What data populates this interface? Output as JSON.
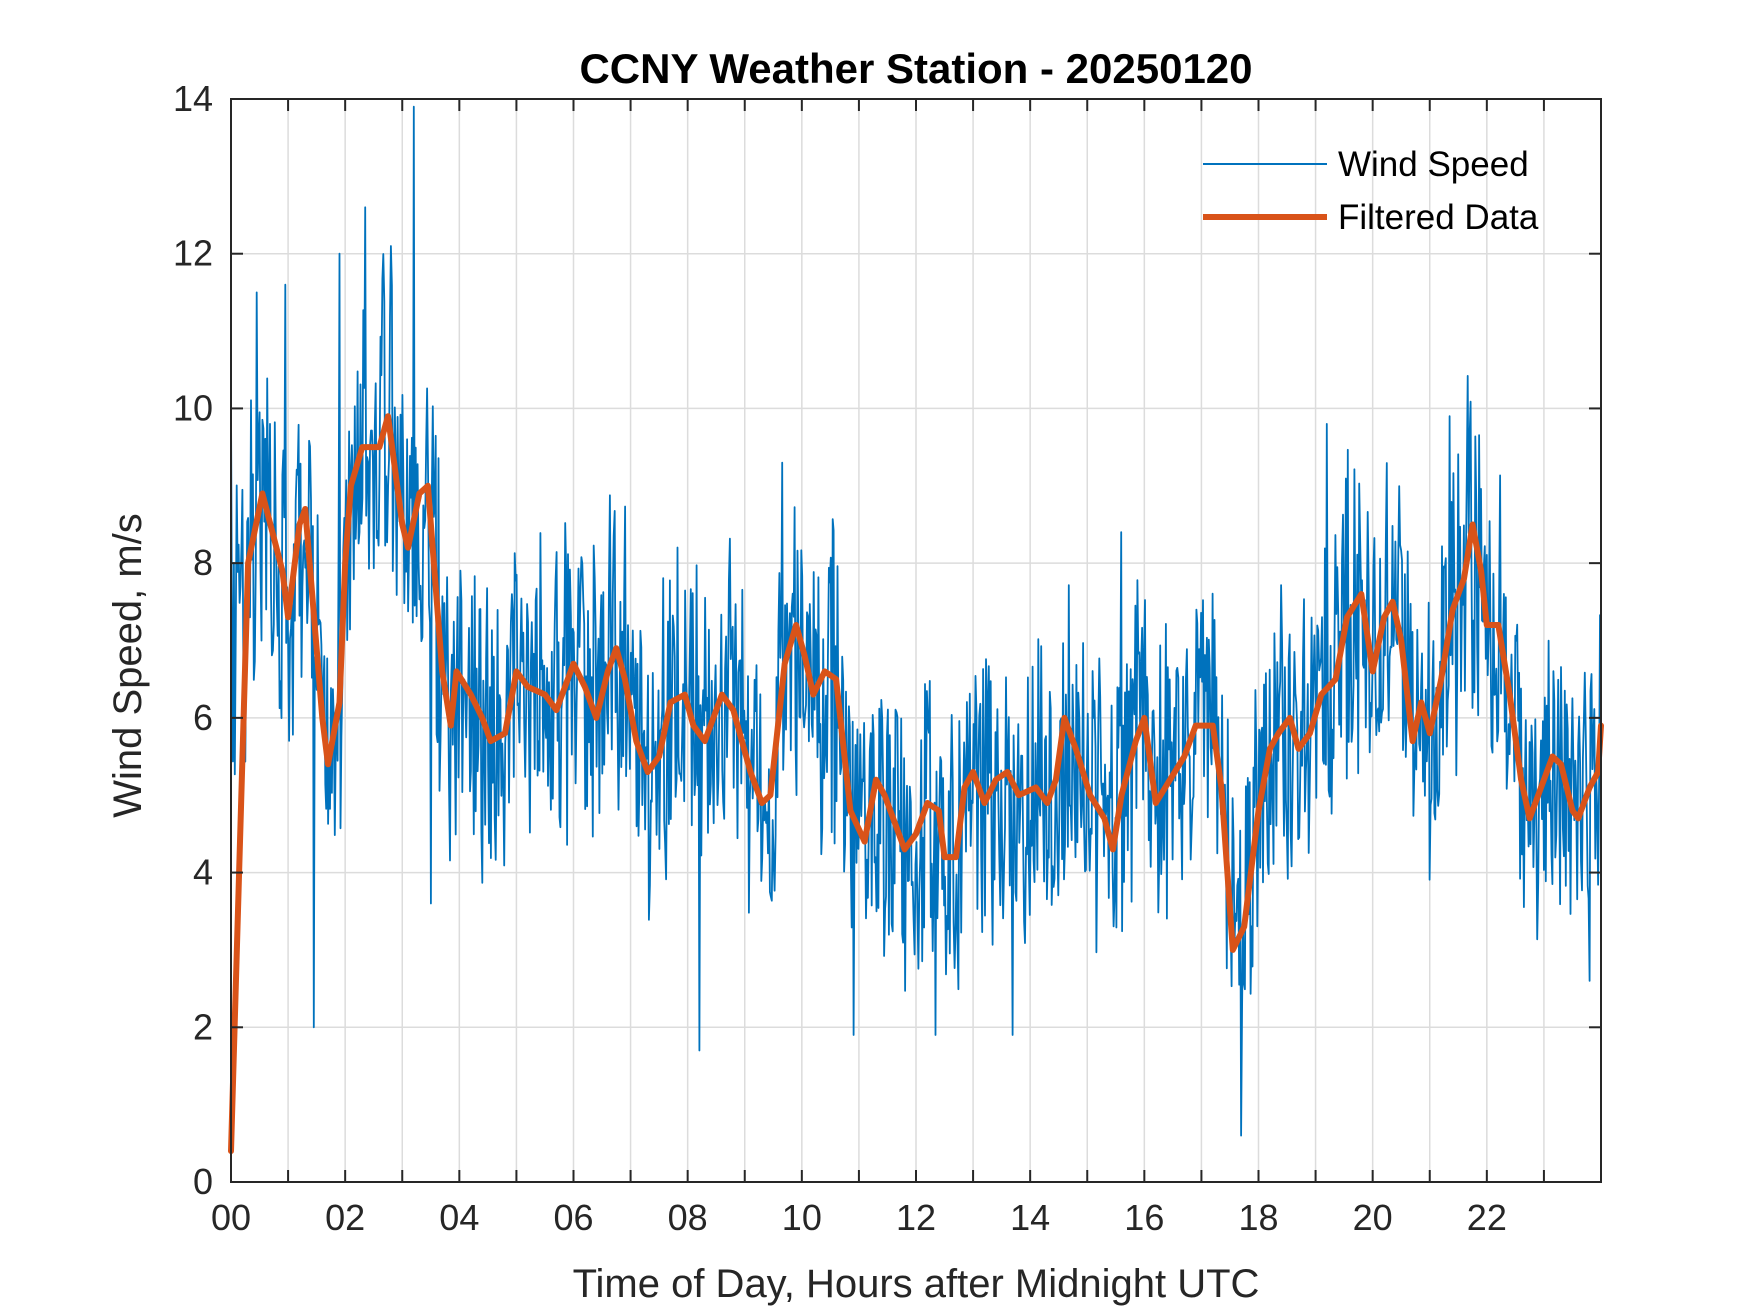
{
  "chart_data": {
    "type": "line",
    "title": "CCNY Weather Station - 20250120",
    "xlabel": "Time of Day, Hours after Midnight UTC",
    "ylabel": "Wind Speed, m/s",
    "xlim": [
      0,
      24
    ],
    "ylim": [
      0,
      14
    ],
    "xticks": [
      0,
      2,
      4,
      6,
      8,
      10,
      12,
      14,
      16,
      18,
      20,
      22
    ],
    "xtick_labels": [
      "00",
      "02",
      "04",
      "06",
      "08",
      "10",
      "12",
      "14",
      "16",
      "18",
      "20",
      "22"
    ],
    "xminor_ticks": [
      1,
      3,
      5,
      7,
      9,
      11,
      13,
      15,
      17,
      19,
      21,
      23
    ],
    "yticks": [
      0,
      2,
      4,
      6,
      8,
      10,
      12,
      14
    ],
    "ytick_labels": [
      "0",
      "2",
      "4",
      "6",
      "8",
      "10",
      "12",
      "14"
    ],
    "grid": true,
    "legend": {
      "location": "top-right",
      "entries": [
        "Wind Speed",
        "Filtered Data"
      ]
    },
    "series": [
      {
        "name": "Wind Speed",
        "color": "#0072BD",
        "style": "thin-line",
        "description": "Raw 1-minute-scale wind speed, highly noisy; peak ~13.9 m/s near 03:10, minimum ~0.6 m/s near 17:40",
        "notable_points": [
          {
            "x": 0.0,
            "y": 10.0
          },
          {
            "x": 0.45,
            "y": 11.5
          },
          {
            "x": 0.95,
            "y": 11.6
          },
          {
            "x": 1.45,
            "y": 2.0
          },
          {
            "x": 1.9,
            "y": 12.0
          },
          {
            "x": 2.35,
            "y": 12.6
          },
          {
            "x": 2.8,
            "y": 12.1
          },
          {
            "x": 3.2,
            "y": 13.9
          },
          {
            "x": 3.5,
            "y": 3.6
          },
          {
            "x": 8.2,
            "y": 1.7
          },
          {
            "x": 9.65,
            "y": 9.3
          },
          {
            "x": 10.9,
            "y": 1.9
          },
          {
            "x": 12.35,
            "y": 1.9
          },
          {
            "x": 13.7,
            "y": 1.9
          },
          {
            "x": 15.6,
            "y": 8.4
          },
          {
            "x": 17.7,
            "y": 0.6
          },
          {
            "x": 19.2,
            "y": 9.8
          },
          {
            "x": 21.35,
            "y": 9.9
          },
          {
            "x": 23.8,
            "y": 2.6
          }
        ]
      },
      {
        "name": "Filtered Data",
        "color": "#D95319",
        "style": "thick-line",
        "x": [
          0.0,
          0.3,
          0.55,
          0.9,
          1.0,
          1.2,
          1.3,
          1.6,
          1.7,
          1.9,
          2.0,
          2.1,
          2.3,
          2.6,
          2.75,
          3.0,
          3.1,
          3.3,
          3.45,
          3.7,
          3.85,
          3.95,
          4.2,
          4.4,
          4.55,
          4.8,
          5.0,
          5.2,
          5.5,
          5.7,
          6.0,
          6.2,
          6.4,
          6.6,
          6.75,
          6.9,
          7.1,
          7.3,
          7.5,
          7.7,
          7.95,
          8.1,
          8.3,
          8.6,
          8.8,
          9.1,
          9.3,
          9.45,
          9.7,
          9.9,
          10.05,
          10.2,
          10.4,
          10.6,
          10.85,
          11.1,
          11.3,
          11.45,
          11.6,
          11.8,
          12.0,
          12.2,
          12.4,
          12.5,
          12.7,
          12.85,
          13.0,
          13.2,
          13.4,
          13.6,
          13.8,
          14.1,
          14.3,
          14.45,
          14.6,
          14.8,
          15.05,
          15.3,
          15.45,
          15.6,
          15.85,
          16.0,
          16.2,
          16.45,
          16.7,
          16.9,
          17.2,
          17.35,
          17.55,
          17.75,
          18.0,
          18.2,
          18.35,
          18.55,
          18.7,
          18.9,
          19.1,
          19.35,
          19.55,
          19.8,
          20.0,
          20.2,
          20.35,
          20.5,
          20.7,
          20.85,
          21.0,
          21.2,
          21.4,
          21.6,
          21.75,
          21.9,
          22.0,
          22.2,
          22.4,
          22.6,
          22.75,
          22.9,
          23.15,
          23.3,
          23.5,
          23.6,
          23.8,
          23.95,
          24.0
        ],
        "y": [
          0.4,
          8.0,
          8.9,
          7.9,
          7.3,
          8.5,
          8.7,
          6.0,
          5.4,
          6.2,
          8.0,
          9.0,
          9.5,
          9.5,
          9.9,
          8.5,
          8.2,
          8.9,
          9.0,
          6.6,
          5.9,
          6.6,
          6.3,
          6.0,
          5.7,
          5.8,
          6.6,
          6.4,
          6.3,
          6.1,
          6.7,
          6.4,
          6.0,
          6.6,
          6.9,
          6.5,
          5.7,
          5.3,
          5.5,
          6.2,
          6.3,
          5.9,
          5.7,
          6.3,
          6.1,
          5.3,
          4.9,
          5.0,
          6.7,
          7.2,
          6.8,
          6.3,
          6.6,
          6.5,
          4.8,
          4.4,
          5.2,
          5.0,
          4.7,
          4.3,
          4.5,
          4.9,
          4.8,
          4.2,
          4.2,
          5.1,
          5.3,
          4.9,
          5.2,
          5.3,
          5.0,
          5.1,
          4.9,
          5.2,
          6.0,
          5.6,
          5.0,
          4.7,
          4.3,
          5.0,
          5.7,
          6.0,
          4.9,
          5.2,
          5.5,
          5.9,
          5.9,
          5.1,
          3.0,
          3.3,
          4.8,
          5.6,
          5.8,
          6.0,
          5.6,
          5.8,
          6.3,
          6.5,
          7.3,
          7.6,
          6.6,
          7.3,
          7.5,
          7.0,
          5.7,
          6.2,
          5.8,
          6.5,
          7.4,
          7.8,
          8.5,
          7.9,
          7.2,
          7.2,
          6.3,
          5.2,
          4.7,
          5.0,
          5.5,
          5.4,
          4.8,
          4.7,
          5.1,
          5.3,
          5.9
        ]
      }
    ]
  }
}
